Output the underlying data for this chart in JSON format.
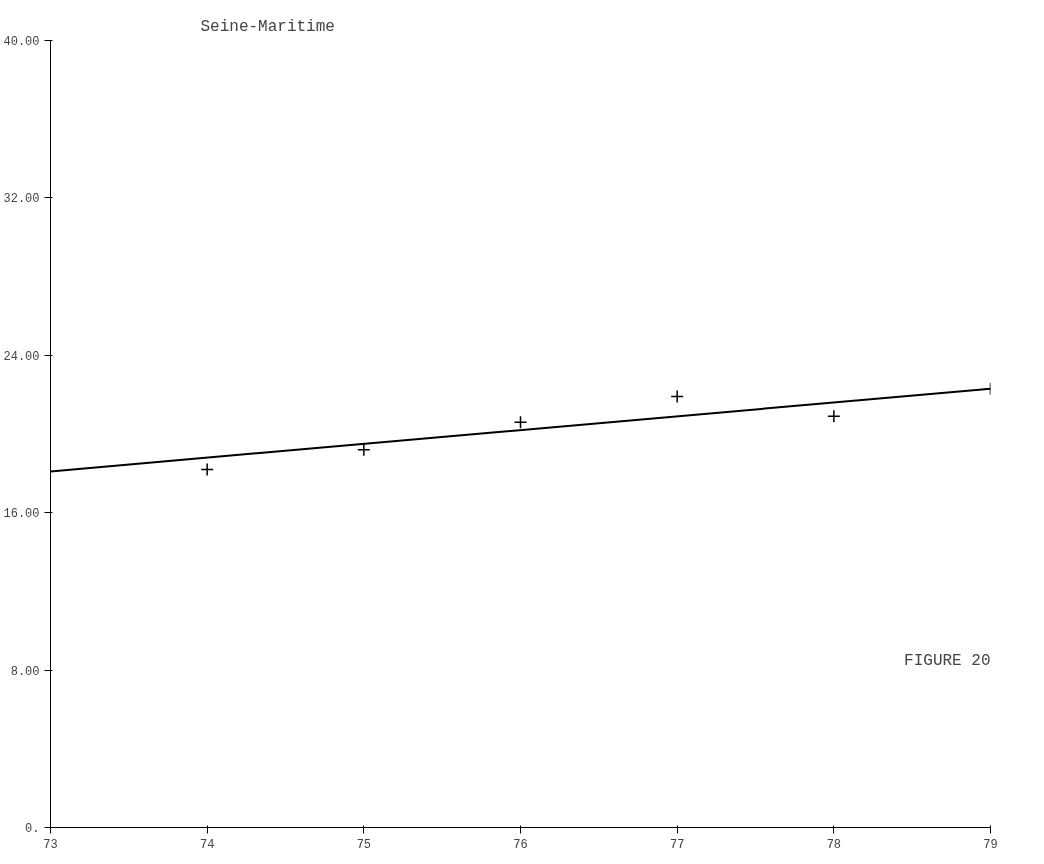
{
  "chart_data": {
    "type": "scatter",
    "title": "Seine-Maritime",
    "x": [
      74,
      75,
      76,
      77,
      78,
      79
    ],
    "series": [
      {
        "color": "#000000",
        "marker": "cross",
        "values": [
          18.2,
          19.2,
          20.6,
          21.9,
          20.9,
          22.3
        ]
      },
      {
        "type": "line",
        "color": "#000000",
        "x": [
          73,
          79
        ],
        "values": [
          18.1,
          22.3
        ]
      }
    ],
    "xlim": [
      73,
      79
    ],
    "xticks": [
      73,
      74,
      75,
      76,
      77,
      78,
      79
    ],
    "ylim": [
      0,
      40
    ],
    "yticks": [
      {
        "value": 0,
        "label": "0."
      },
      {
        "value": 8,
        "label": "8.00"
      },
      {
        "value": 16,
        "label": "16.00"
      },
      {
        "value": 24,
        "label": "24.00"
      },
      {
        "value": 32,
        "label": "32.00"
      },
      {
        "value": 40,
        "label": "40.00"
      }
    ],
    "annotations": [
      "FIGURE 20"
    ],
    "grid": false
  }
}
